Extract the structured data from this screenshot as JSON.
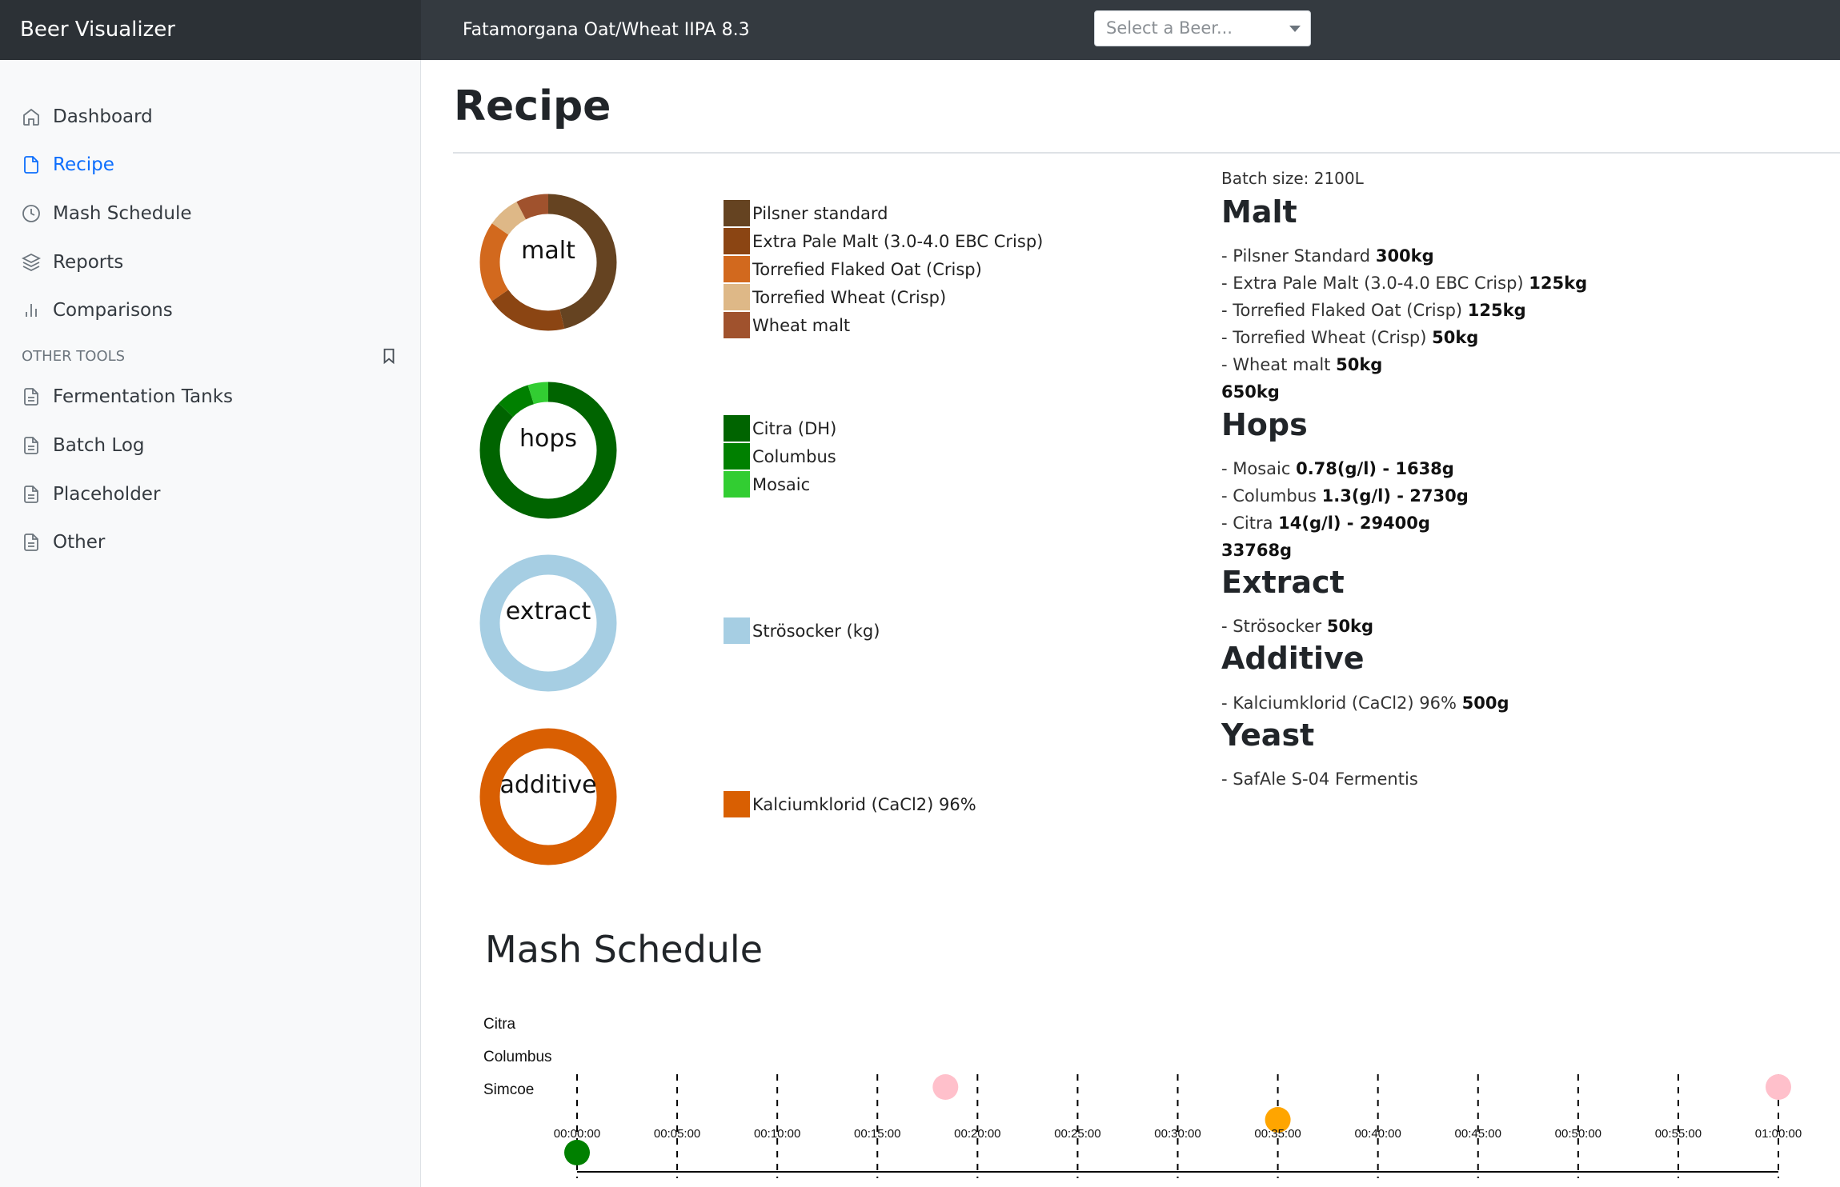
{
  "app": {
    "title": "Beer Visualizer"
  },
  "header": {
    "beer_title": "Fatamorgana Oat/Wheat IIPA 8.3",
    "select_placeholder": "Select a Beer..."
  },
  "sidebar": {
    "items": [
      {
        "label": "Dashboard",
        "icon": "home-icon"
      },
      {
        "label": "Recipe",
        "icon": "file-icon",
        "active": true
      },
      {
        "label": "Mash Schedule",
        "icon": "clock-icon"
      },
      {
        "label": "Reports",
        "icon": "layers-icon"
      },
      {
        "label": "Comparisons",
        "icon": "bar-chart-icon"
      }
    ],
    "other_heading": "OTHER TOOLS",
    "other_items": [
      {
        "label": "Fermentation Tanks",
        "icon": "file-text-icon"
      },
      {
        "label": "Batch Log",
        "icon": "file-text-icon"
      },
      {
        "label": "Placeholder",
        "icon": "file-text-icon"
      },
      {
        "label": "Other",
        "icon": "file-text-icon"
      }
    ]
  },
  "page": {
    "title": "Recipe"
  },
  "donuts": [
    {
      "label": "malt",
      "legend": [
        "Pilsner standard",
        "Extra Pale Malt (3.0-4.0 EBC Crisp)",
        "Torrefied Flaked Oat (Crisp)",
        "Torrefied Wheat (Crisp)",
        "Wheat malt"
      ],
      "values": [
        300,
        125,
        125,
        50,
        50
      ],
      "colors": [
        "#654321",
        "#8b4513",
        "#d2691e",
        "#deb887",
        "#a0522d"
      ]
    },
    {
      "label": "hops",
      "legend": [
        "Citra (DH)",
        "Columbus",
        "Mosaic"
      ],
      "values": [
        29400,
        2730,
        1638
      ],
      "colors": [
        "#006400",
        "#008000",
        "#32cd32"
      ]
    },
    {
      "label": "extract",
      "legend": [
        "Strösocker (kg)"
      ],
      "values": [
        50
      ],
      "colors": [
        "#a6cee3"
      ]
    },
    {
      "label": "additive",
      "legend": [
        "Kalciumklorid (CaCl2) 96%"
      ],
      "values": [
        500
      ],
      "colors": [
        "#d95f02"
      ]
    }
  ],
  "recipe": {
    "batch_size": "Batch size: 2100L",
    "malt": {
      "heading": "Malt",
      "items": [
        {
          "name": "- Pilsner Standard ",
          "amount": "300kg"
        },
        {
          "name": "- Extra Pale Malt (3.0-4.0 EBC Crisp) ",
          "amount": "125kg"
        },
        {
          "name": "- Torrefied Flaked Oat (Crisp) ",
          "amount": "125kg"
        },
        {
          "name": "- Torrefied Wheat (Crisp) ",
          "amount": "50kg"
        },
        {
          "name": "- Wheat malt ",
          "amount": "50kg"
        }
      ],
      "total": "650kg"
    },
    "hops": {
      "heading": "Hops",
      "items": [
        {
          "name": "- Mosaic ",
          "amount": "0.78(g/l) - 1638g"
        },
        {
          "name": "- Columbus ",
          "amount": "1.3(g/l) - 2730g"
        },
        {
          "name": "- Citra ",
          "amount": "14(g/l) - 29400g"
        }
      ],
      "total": "33768g"
    },
    "extract": {
      "heading": "Extract",
      "items": [
        {
          "name": "- Strösocker ",
          "amount": "50kg"
        }
      ]
    },
    "additive": {
      "heading": "Additive",
      "items": [
        {
          "name": "- Kalciumklorid (CaCl2) 96% ",
          "amount": "500g"
        }
      ]
    },
    "yeast": {
      "heading": "Yeast",
      "items": [
        {
          "name": "- SafAle S-04 Fermentis",
          "amount": ""
        }
      ]
    }
  },
  "mash": {
    "title": "Mash Schedule",
    "rows": [
      "Citra",
      "Columbus",
      "Simcoe"
    ],
    "ticks": [
      "00:00:00",
      "00:05:00",
      "00:10:00",
      "00:15:00",
      "00:20:00",
      "00:25:00",
      "00:30:00",
      "00:35:00",
      "00:40:00",
      "00:45:00",
      "00:50:00",
      "00:55:00",
      "01:00:00"
    ],
    "events": [
      {
        "row": "Citra",
        "minute": 18.4,
        "color": "#ffc0cb"
      },
      {
        "row": "Citra",
        "minute": 60,
        "color": "#ffc0cb"
      },
      {
        "row": "Columbus",
        "minute": 35,
        "color": "#ffa500"
      },
      {
        "row": "Simcoe",
        "minute": 0,
        "color": "#008000"
      }
    ]
  }
}
